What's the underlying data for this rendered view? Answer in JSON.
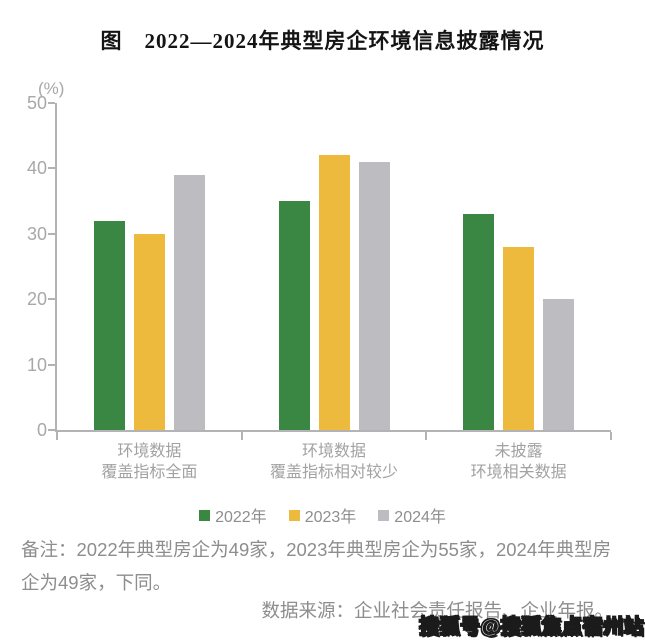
{
  "title": "图　2022—2024年典型房企环境信息披露情况",
  "chart_data": {
    "type": "bar",
    "unit_label": "(%)",
    "categories": [
      {
        "line1": "环境数据",
        "line2": "覆盖指标全面"
      },
      {
        "line1": "环境数据",
        "line2": "覆盖指标相对较少"
      },
      {
        "line1": "未披露",
        "line2": "环境相关数据"
      }
    ],
    "series": [
      {
        "name": "2022年",
        "color": "#398743",
        "values": [
          32,
          35,
          33
        ]
      },
      {
        "name": "2023年",
        "color": "#EEBA3D",
        "values": [
          30,
          42,
          28
        ]
      },
      {
        "name": "2024年",
        "color": "#BDBDC1",
        "values": [
          39,
          41,
          20
        ]
      }
    ],
    "ylim": [
      0,
      50
    ],
    "yticks": [
      0,
      10,
      20,
      30,
      40,
      50
    ],
    "grid": false,
    "legend_position": "bottom"
  },
  "note": "备注：2022年典型房企为49家，2023年典型房企为55家，2024年典型房企为49家，下同。",
  "source": "数据来源：企业社会责任报告、企业年报。",
  "watermark": "搜狐号@搜狐焦点宿州站"
}
